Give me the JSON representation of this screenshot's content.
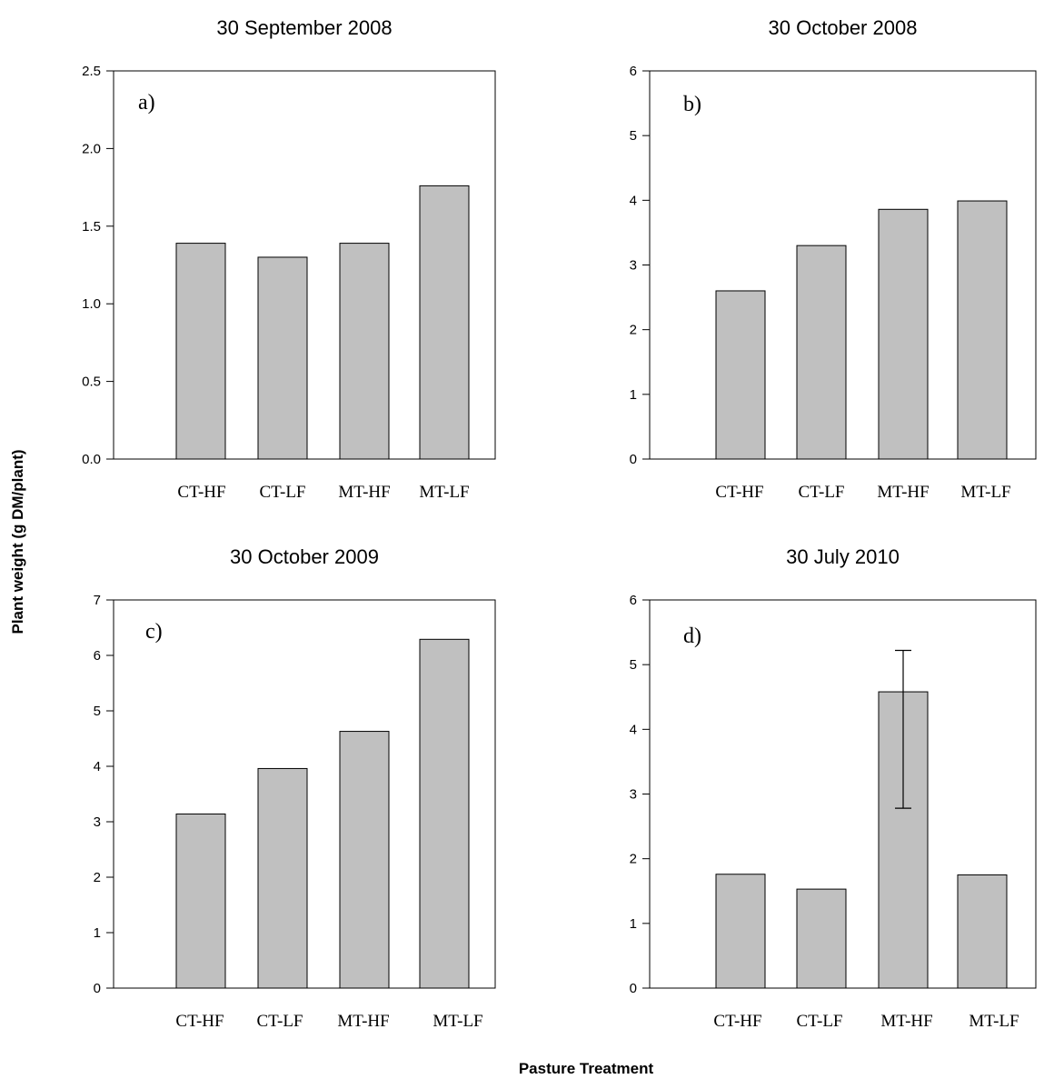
{
  "ylabel": "Plant weight (g DM/plant)",
  "xlabel": "Pasture Treatment",
  "colors": {
    "bar_fill": "#c0c0c0",
    "bar_stroke": "#000000",
    "axis": "#000000"
  },
  "chart_data": [
    {
      "type": "bar",
      "title": "30 September 2008",
      "panel_label": "a)",
      "categories": [
        "CT-HF",
        "CT-LF",
        "MT-HF",
        "MT-LF"
      ],
      "values": [
        1.39,
        1.3,
        1.39,
        1.76
      ],
      "ylim": [
        0,
        2.5
      ],
      "yticks": [
        "0.0",
        "0.5",
        "1.0",
        "1.5",
        "2.0",
        "2.5"
      ],
      "grid": false
    },
    {
      "type": "bar",
      "title": "30 October 2008",
      "panel_label": "b)",
      "categories": [
        "CT-HF",
        "CT-LF",
        "MT-HF",
        "MT-LF"
      ],
      "values": [
        2.6,
        3.3,
        3.86,
        3.99
      ],
      "ylim": [
        0,
        6
      ],
      "yticks": [
        "0",
        "1",
        "2",
        "3",
        "4",
        "5",
        "6"
      ],
      "grid": false
    },
    {
      "type": "bar",
      "title": "30 October 2009",
      "panel_label": "c)",
      "categories": [
        "CT-HF",
        "CT-LF",
        "MT-HF",
        "MT-LF"
      ],
      "values": [
        3.14,
        3.96,
        4.63,
        6.29
      ],
      "ylim": [
        0,
        7
      ],
      "yticks": [
        "0",
        "1",
        "2",
        "3",
        "4",
        "5",
        "6",
        "7"
      ],
      "grid": false
    },
    {
      "type": "bar",
      "title": "30 July 2010",
      "panel_label": "d)",
      "categories": [
        "CT-HF",
        "CT-LF",
        "MT-HF",
        "MT-LF"
      ],
      "values": [
        1.76,
        1.53,
        4.58,
        1.75
      ],
      "error_bar": {
        "category": "MT-HF",
        "low": 2.78,
        "high": 5.22
      },
      "ylim": [
        0,
        6
      ],
      "yticks": [
        "0",
        "1",
        "2",
        "3",
        "4",
        "5",
        "6"
      ],
      "grid": false
    }
  ]
}
